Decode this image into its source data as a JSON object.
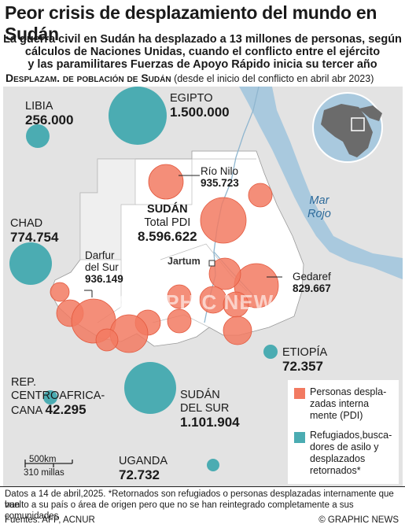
{
  "title": "Peor crisis de desplazamiento del mundo en Sudán",
  "subtitle_lines": [
    "La guerra civil en Sudán ha desplazado a 13 millones de personas, según",
    "cálculos de Naciones Unidas, cuando el conflicto entre el ejército",
    "y las paramilitares Fuerzas de Apoyo Rápido inicia su tercer año"
  ],
  "section": {
    "label": "Desplazam. de población de Sudán",
    "note": "(desde el inicio del conflicto en abril abr 2023)"
  },
  "places": {
    "libia": {
      "name": "LIBIA",
      "value": "256.000"
    },
    "egipto": {
      "name": "EGIPTO",
      "value": "1.500.000"
    },
    "chad": {
      "name": "CHAD",
      "value": "774.754"
    },
    "rio_nilo": {
      "name": "Río Nilo",
      "value": "935.723"
    },
    "sudan": {
      "name": "SUDÁN",
      "total_label": "Total PDI",
      "value": "8.596.622"
    },
    "jartum": {
      "name": "Jartum"
    },
    "darfur_sur": {
      "name_line1": "Darfur",
      "name_line2": "del Sur",
      "value": "936.149"
    },
    "gedaref": {
      "name": "Gedaref",
      "value": "829.667"
    },
    "etiopia": {
      "name": "ETIOPÍA",
      "value": "72.357"
    },
    "rca": {
      "line1": "REP.",
      "line2": "CENTROAFRICA-",
      "line3": "CANA",
      "value": "42.295"
    },
    "sudan_sur": {
      "line1": "SUDÁN",
      "line2": "DEL SUR",
      "value": "1.101.904"
    },
    "uganda": {
      "name": "UGANDA",
      "value": "72.732"
    },
    "mar_rojo": {
      "line1": "Mar",
      "line2": "Rojo"
    }
  },
  "scale": {
    "km": "500km",
    "miles": "310 millas"
  },
  "watermark": "GRAPHIC NEWS",
  "legend": {
    "pdi": {
      "line1": "Personas despla-",
      "line2": "zadas interna",
      "line3": "mente (PDI)"
    },
    "refugees": {
      "line1": "Refugiados,busca-",
      "line2": "dores de asilo y",
      "line3": "desplazados",
      "line4": "retornados*"
    }
  },
  "footnote": {
    "line1": "Datos a 14 de abril,2025. *Retornados son refugiados o personas desplazadas internamente que han",
    "line2": "vuelto a su país o área de origen pero que no se han reintegrado completamente a sus comunidades",
    "sources": "Fuentes: AFP, ACNUR",
    "credit": "© GRAPHIC NEWS"
  },
  "colors": {
    "pdi": "#f27a61",
    "refugees": "#4bacb2",
    "sea": "#a9c9de",
    "land": "#e3e3e3",
    "sudan": "#ffffff"
  }
}
